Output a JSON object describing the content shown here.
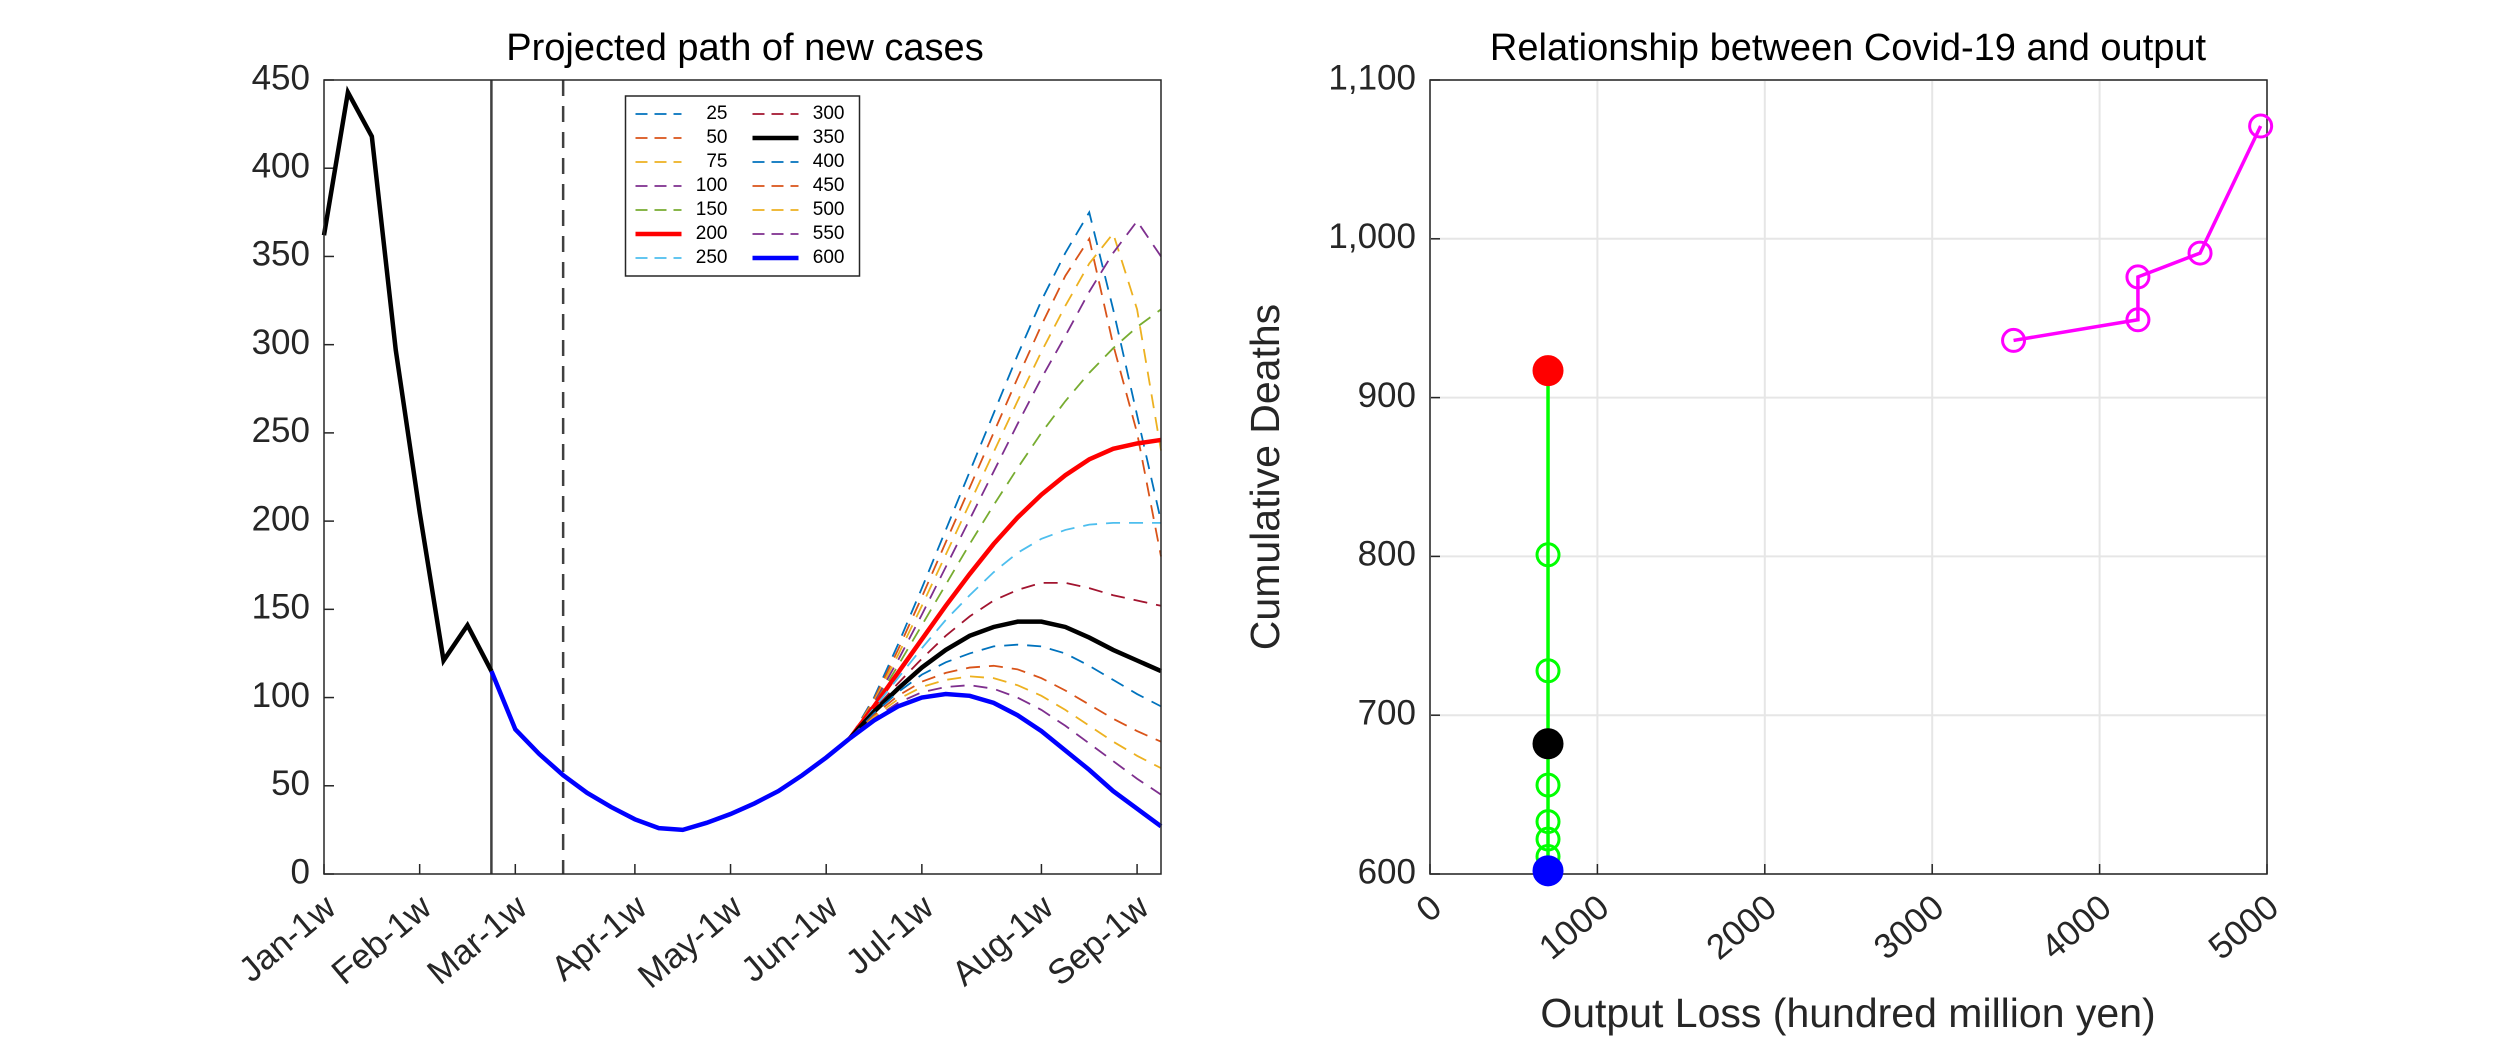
{
  "chart_data": [
    {
      "type": "line",
      "title": "Projected path of new cases",
      "xlim": [
        0,
        35
      ],
      "xticks": [
        {
          "value": 0,
          "label": "Jan-1w"
        },
        {
          "value": 4,
          "label": "Feb-1w"
        },
        {
          "value": 8,
          "label": "Mar-1w"
        },
        {
          "value": 13,
          "label": "Apr-1w"
        },
        {
          "value": 17,
          "label": "May-1w"
        },
        {
          "value": 21,
          "label": "Jun-1w"
        },
        {
          "value": 25,
          "label": "Jul-1w"
        },
        {
          "value": 30,
          "label": "Aug-1w"
        },
        {
          "value": 34,
          "label": "Sep-1w"
        }
      ],
      "ylim": [
        0,
        450
      ],
      "yticks": [
        0,
        50,
        100,
        150,
        200,
        250,
        300,
        350,
        400,
        450
      ],
      "grid": false,
      "legend": "top-center",
      "reference_lines_x": [
        {
          "x": 7,
          "dashed": false
        },
        {
          "x": 10,
          "dashed": true
        }
      ],
      "observed": {
        "color": "#000000",
        "x": [
          0,
          1,
          2,
          3,
          4,
          5,
          6,
          7
        ],
        "values": [
          362,
          443,
          418,
          297,
          205,
          121,
          141,
          115
        ]
      },
      "base": {
        "color": "#0000ff",
        "x": [
          7,
          8,
          9,
          10,
          11,
          12,
          13,
          14,
          15,
          16,
          17,
          18,
          19,
          20,
          21,
          22
        ],
        "values": [
          115,
          82,
          68,
          56,
          46,
          38,
          31,
          26,
          25,
          29,
          34,
          40,
          47,
          56,
          66,
          77
        ]
      },
      "scenario_x": [
        22,
        23,
        24,
        25,
        26,
        27,
        28,
        29,
        30,
        31,
        32,
        33,
        34,
        35
      ],
      "series": [
        {
          "name": "25",
          "color": "#0072bd",
          "dashed": true,
          "values": [
            77,
            100,
            130,
            162,
            195,
            228,
            261,
            294,
            325,
            352,
            375,
            320,
            260,
            200
          ]
        },
        {
          "name": "50",
          "color": "#d95319",
          "dashed": true,
          "values": [
            77,
            99,
            127,
            157,
            188,
            219,
            250,
            281,
            311,
            339,
            360,
            300,
            250,
            180
          ]
        },
        {
          "name": "75",
          "color": "#edb120",
          "dashed": true,
          "values": [
            77,
            98,
            124,
            152,
            181,
            210,
            239,
            268,
            296,
            322,
            346,
            363,
            320,
            240
          ]
        },
        {
          "name": "100",
          "color": "#7e2f8e",
          "dashed": true,
          "values": [
            77,
            97,
            121,
            147,
            174,
            201,
            228,
            255,
            281,
            305,
            330,
            352,
            370,
            350
          ]
        },
        {
          "name": "150",
          "color": "#77ac30",
          "dashed": true,
          "values": [
            77,
            96,
            118,
            141,
            164,
            187,
            209,
            230,
            250,
            268,
            284,
            298,
            310,
            320
          ]
        },
        {
          "name": "200",
          "color": "#ff0000",
          "dashed": false,
          "values": [
            77,
            95,
            114,
            133,
            152,
            170,
            187,
            202,
            215,
            226,
            235,
            241,
            244,
            246
          ]
        },
        {
          "name": "250",
          "color": "#4dbeee",
          "dashed": true,
          "values": [
            77,
            94,
            111,
            128,
            144,
            158,
            171,
            182,
            190,
            195,
            198,
            199,
            199,
            199
          ]
        },
        {
          "name": "300",
          "color": "#a2142f",
          "dashed": true,
          "values": [
            77,
            93,
            108,
            122,
            135,
            146,
            155,
            161,
            165,
            165,
            162,
            158,
            155,
            152
          ]
        },
        {
          "name": "350",
          "color": "#000000",
          "dashed": false,
          "values": [
            77,
            92,
            105,
            117,
            127,
            135,
            140,
            143,
            143,
            140,
            134,
            127,
            121,
            115
          ]
        },
        {
          "name": "400",
          "color": "#0072bd",
          "dashed": true,
          "values": [
            77,
            91,
            103,
            113,
            120,
            125,
            129,
            130,
            129,
            125,
            118,
            110,
            102,
            95
          ]
        },
        {
          "name": "450",
          "color": "#d95319",
          "dashed": true,
          "values": [
            77,
            90,
            101,
            109,
            114,
            117,
            118,
            116,
            111,
            104,
            96,
            88,
            81,
            75
          ]
        },
        {
          "name": "500",
          "color": "#edb120",
          "dashed": true,
          "values": [
            77,
            89,
            99,
            106,
            110,
            112,
            111,
            107,
            101,
            93,
            84,
            75,
            67,
            60
          ]
        },
        {
          "name": "550",
          "color": "#7e2f8e",
          "dashed": true,
          "values": [
            77,
            88,
            97,
            103,
            106,
            107,
            105,
            100,
            93,
            84,
            74,
            64,
            54,
            45
          ]
        },
        {
          "name": "600",
          "color": "#0000ff",
          "dashed": false,
          "values": [
            77,
            87,
            95,
            100,
            102,
            101,
            97,
            90,
            81,
            70,
            59,
            47,
            37,
            27
          ]
        }
      ]
    },
    {
      "type": "scatter",
      "title": "Relationship between Covid-19 and output",
      "xlabel": "Output Loss (hundred million yen)",
      "ylabel": "Cumulative Deaths",
      "xlim": [
        0,
        5000
      ],
      "xticks": [
        0,
        1000,
        2000,
        3000,
        4000,
        5000
      ],
      "ylim": [
        600,
        1100
      ],
      "yticks": [
        600,
        700,
        800,
        900,
        {
          "value": 1000,
          "label": "1,000"
        },
        {
          "value": 1100,
          "label": "1,100"
        }
      ],
      "grid": true,
      "series": [
        {
          "color": "#00ff00",
          "marker": "open",
          "x": [
            705,
            705,
            705,
            705,
            705,
            705,
            705,
            705,
            705
          ],
          "values": [
            917,
            801,
            728,
            682,
            656,
            633,
            622,
            611,
            602
          ]
        },
        {
          "color": "#ff00ff",
          "marker": "open",
          "x": [
            3486,
            4229,
            4229,
            4600,
            4962
          ],
          "values": [
            936,
            949,
            976,
            991,
            1071
          ]
        },
        {
          "color": "#ff0000",
          "marker": "filled",
          "x": [
            705
          ],
          "values": [
            917
          ]
        },
        {
          "color": "#000000",
          "marker": "filled",
          "x": [
            705
          ],
          "values": [
            682
          ]
        },
        {
          "color": "#0000ff",
          "marker": "filled",
          "x": [
            705
          ],
          "values": [
            602
          ]
        }
      ]
    }
  ]
}
